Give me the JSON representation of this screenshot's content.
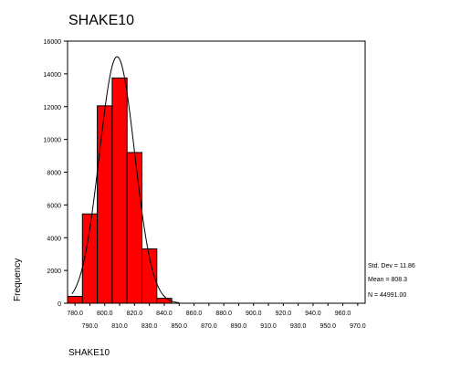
{
  "chart_data": {
    "type": "bar",
    "title": "SHAKE10",
    "xlabel": "SHAKE10",
    "ylabel": "Frequency",
    "ylim": [
      0,
      16000
    ],
    "yticks": [
      0,
      2000,
      4000,
      6000,
      8000,
      10000,
      12000,
      14000,
      16000
    ],
    "xlim": [
      775,
      975
    ],
    "xticks_top": [
      "780.0",
      "800.0",
      "820.0",
      "840.0",
      "860.0",
      "880.0",
      "900.0",
      "920.0",
      "940.0",
      "960.0"
    ],
    "xticks_bottom": [
      "790.0",
      "810.0",
      "830.0",
      "850.0",
      "870.0",
      "890.0",
      "910.0",
      "930.0",
      "950.0",
      "970.0"
    ],
    "bin_width": 10,
    "bins": [
      {
        "center": 780,
        "value": 420
      },
      {
        "center": 790,
        "value": 5450
      },
      {
        "center": 800,
        "value": 12050
      },
      {
        "center": 810,
        "value": 13750
      },
      {
        "center": 820,
        "value": 9200
      },
      {
        "center": 830,
        "value": 3320
      },
      {
        "center": 840,
        "value": 300
      }
    ],
    "normal_curve": {
      "mean": 808.3,
      "std_dev": 11.86,
      "n": 44991,
      "peak": 15050
    },
    "colors": {
      "bar_fill": "#ff0000",
      "bar_stroke": "#000000",
      "curve": "#000000"
    },
    "grid": false,
    "stats": {
      "std_dev": "Std. Dev = 11.86",
      "mean": "Mean = 808.3",
      "n": "N = 44991.00"
    }
  }
}
